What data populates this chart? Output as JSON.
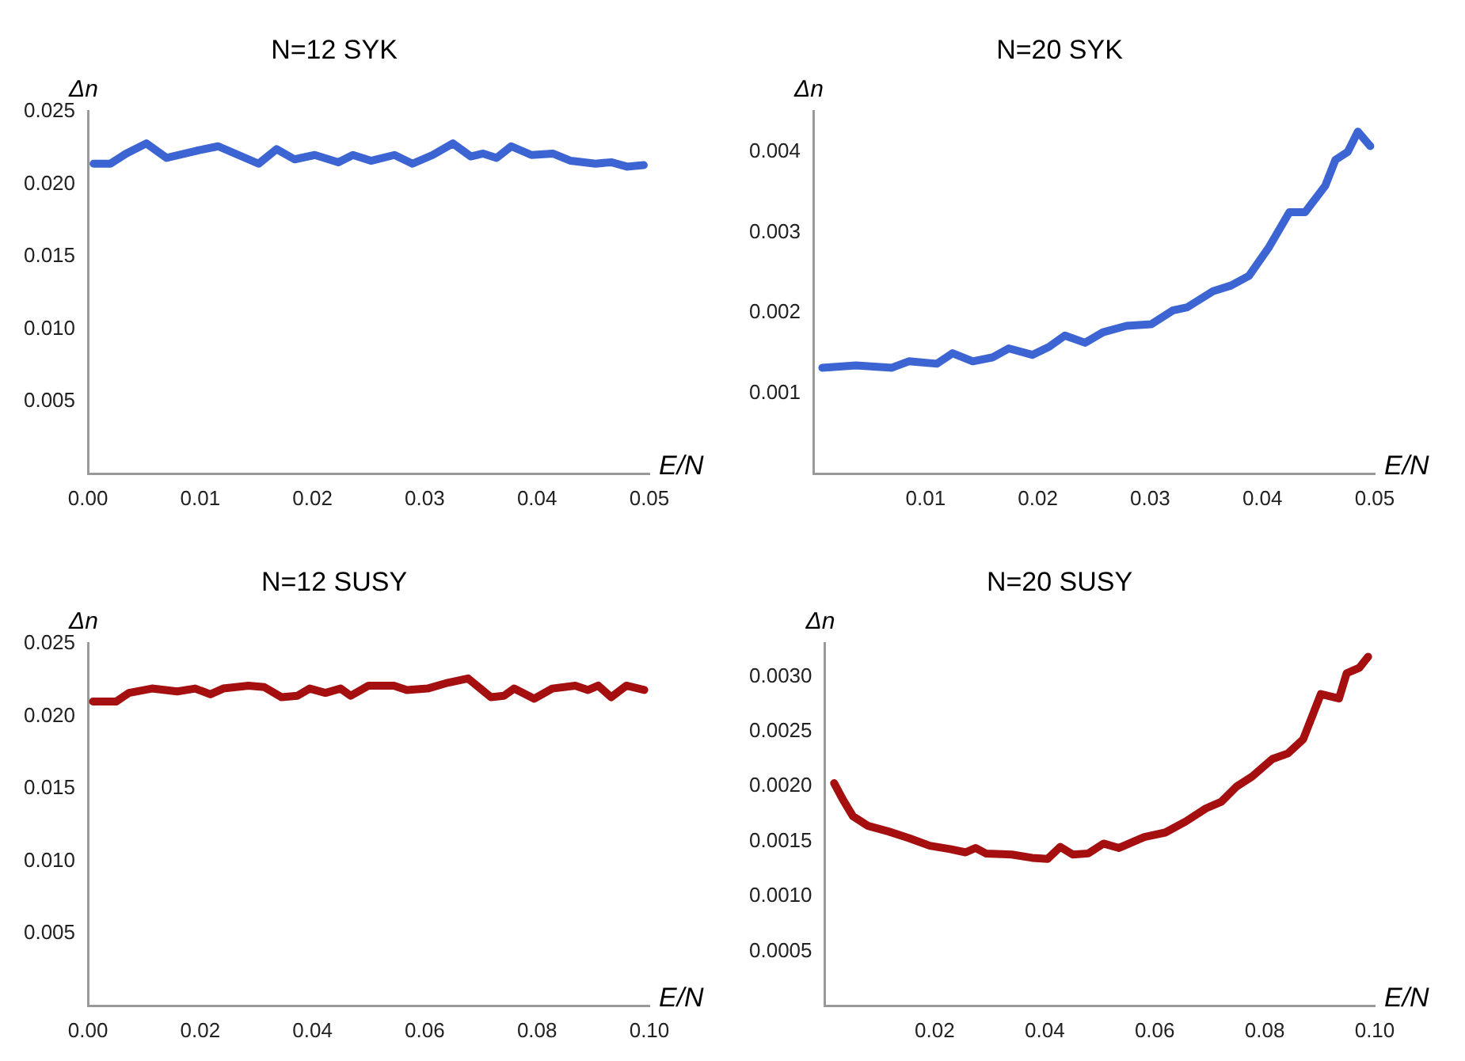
{
  "chart_data": [
    {
      "type": "line",
      "title": "N=12 SYK",
      "xlabel": "E/N",
      "ylabel": "Δn",
      "xlim": [
        0,
        0.05
      ],
      "ylim": [
        0,
        0.025
      ],
      "grid": false,
      "legend": false,
      "marker": "none",
      "line_style": "solid",
      "xticks": [
        {
          "value": 0,
          "label": "0.00"
        },
        {
          "value": 0.01,
          "label": "0.01"
        },
        {
          "value": 0.02,
          "label": "0.02"
        },
        {
          "value": 0.03,
          "label": "0.03"
        },
        {
          "value": 0.04,
          "label": "0.04"
        },
        {
          "value": 0.05,
          "label": "0.05"
        }
      ],
      "yticks": [
        {
          "value": 0.005,
          "label": "0.005"
        },
        {
          "value": 0.01,
          "label": "0.010"
        },
        {
          "value": 0.015,
          "label": "0.015"
        },
        {
          "value": 0.02,
          "label": "0.020"
        },
        {
          "value": 0.025,
          "label": "0.025"
        }
      ],
      "x": [
        0.0005,
        0.002,
        0.0034,
        0.0052,
        0.007,
        0.0097,
        0.0116,
        0.0134,
        0.0152,
        0.0168,
        0.0184,
        0.0202,
        0.0223,
        0.0236,
        0.0252,
        0.0273,
        0.0289,
        0.0307,
        0.0325,
        0.0341,
        0.0352,
        0.0364,
        0.0377,
        0.0395,
        0.0414,
        0.043,
        0.0452,
        0.0466,
        0.048,
        0.0495
      ],
      "series": [
        {
          "color": "#3c64d2",
          "values": [
            0.0214,
            0.0214,
            0.0221,
            0.0228,
            0.0218,
            0.0223,
            0.0226,
            0.022,
            0.0214,
            0.0224,
            0.0217,
            0.022,
            0.0215,
            0.022,
            0.0216,
            0.022,
            0.0214,
            0.022,
            0.0228,
            0.0219,
            0.0221,
            0.0218,
            0.0226,
            0.022,
            0.0221,
            0.0216,
            0.0214,
            0.0215,
            0.0212,
            0.0213
          ]
        }
      ]
    },
    {
      "type": "line",
      "title": "N=20 SYK",
      "xlabel": "E/N",
      "ylabel": "Δn",
      "xlim": [
        0,
        0.05
      ],
      "ylim": [
        0,
        0.0045
      ],
      "grid": false,
      "legend": false,
      "marker": "none",
      "line_style": "solid",
      "xticks": [
        {
          "value": 0.01,
          "label": "0.01"
        },
        {
          "value": 0.02,
          "label": "0.02"
        },
        {
          "value": 0.03,
          "label": "0.03"
        },
        {
          "value": 0.04,
          "label": "0.04"
        },
        {
          "value": 0.05,
          "label": "0.05"
        }
      ],
      "yticks": [
        {
          "value": 0.001,
          "label": "0.001"
        },
        {
          "value": 0.002,
          "label": "0.002"
        },
        {
          "value": 0.003,
          "label": "0.003"
        },
        {
          "value": 0.004,
          "label": "0.004"
        }
      ],
      "x": [
        0.0008,
        0.0038,
        0.007,
        0.0085,
        0.011,
        0.0124,
        0.0142,
        0.016,
        0.0174,
        0.0195,
        0.021,
        0.0224,
        0.0242,
        0.0258,
        0.0279,
        0.0301,
        0.032,
        0.0333,
        0.0356,
        0.0372,
        0.0388,
        0.0406,
        0.0424,
        0.0438,
        0.0456,
        0.0465,
        0.0476,
        0.0485,
        0.0496
      ],
      "series": [
        {
          "color": "#3c64d2",
          "values": [
            0.00132,
            0.00135,
            0.00132,
            0.0014,
            0.00137,
            0.0015,
            0.0014,
            0.00145,
            0.00156,
            0.00148,
            0.00158,
            0.00172,
            0.00163,
            0.00176,
            0.00184,
            0.00186,
            0.00203,
            0.00207,
            0.00227,
            0.00234,
            0.00246,
            0.00282,
            0.00325,
            0.00325,
            0.00358,
            0.0039,
            0.004,
            0.00425,
            0.00407
          ]
        }
      ]
    },
    {
      "type": "line",
      "title": "N=12 SUSY",
      "xlabel": "E/N",
      "ylabel": "Δn",
      "xlim": [
        0,
        0.1
      ],
      "ylim": [
        0,
        0.025
      ],
      "grid": false,
      "legend": false,
      "marker": "none",
      "line_style": "solid",
      "xticks": [
        {
          "value": 0,
          "label": "0.00"
        },
        {
          "value": 0.02,
          "label": "0.02"
        },
        {
          "value": 0.04,
          "label": "0.04"
        },
        {
          "value": 0.06,
          "label": "0.06"
        },
        {
          "value": 0.08,
          "label": "0.08"
        },
        {
          "value": 0.1,
          "label": "0.10"
        }
      ],
      "yticks": [
        {
          "value": 0.005,
          "label": "0.005"
        },
        {
          "value": 0.01,
          "label": "0.010"
        },
        {
          "value": 0.015,
          "label": "0.015"
        },
        {
          "value": 0.02,
          "label": "0.020"
        },
        {
          "value": 0.025,
          "label": "0.025"
        }
      ],
      "x": [
        0.0009,
        0.005,
        0.0073,
        0.0114,
        0.0159,
        0.0191,
        0.0218,
        0.0241,
        0.0286,
        0.0314,
        0.0345,
        0.0373,
        0.0395,
        0.0423,
        0.045,
        0.0468,
        0.05,
        0.0545,
        0.0568,
        0.0605,
        0.0641,
        0.0677,
        0.0718,
        0.0741,
        0.0759,
        0.0795,
        0.0827,
        0.0868,
        0.0891,
        0.0909,
        0.0932,
        0.0959,
        0.0991
      ],
      "series": [
        {
          "color": "#a50f0f",
          "values": [
            0.021,
            0.021,
            0.0216,
            0.0219,
            0.0217,
            0.0219,
            0.0215,
            0.0219,
            0.0221,
            0.022,
            0.0213,
            0.0214,
            0.0219,
            0.0216,
            0.0219,
            0.0214,
            0.0221,
            0.0221,
            0.0218,
            0.0219,
            0.0223,
            0.0226,
            0.0213,
            0.0214,
            0.0219,
            0.0212,
            0.0219,
            0.0221,
            0.0218,
            0.0221,
            0.0213,
            0.0221,
            0.0218
          ]
        }
      ]
    },
    {
      "type": "line",
      "title": "N=20 SUSY",
      "xlabel": "E/N",
      "ylabel": "Δn",
      "xlim": [
        0,
        0.1
      ],
      "ylim": [
        0,
        0.0033
      ],
      "grid": false,
      "legend": false,
      "marker": "none",
      "line_style": "solid",
      "xticks": [
        {
          "value": 0.02,
          "label": "0.02"
        },
        {
          "value": 0.04,
          "label": "0.04"
        },
        {
          "value": 0.06,
          "label": "0.06"
        },
        {
          "value": 0.08,
          "label": "0.08"
        },
        {
          "value": 0.1,
          "label": "0.10"
        }
      ],
      "yticks": [
        {
          "value": 0.0005,
          "label": "0.0005"
        },
        {
          "value": 0.001,
          "label": "0.0010"
        },
        {
          "value": 0.0015,
          "label": "0.0015"
        },
        {
          "value": 0.002,
          "label": "0.0020"
        },
        {
          "value": 0.0025,
          "label": "0.0025"
        },
        {
          "value": 0.003,
          "label": "0.0030"
        }
      ],
      "x": [
        0.0017,
        0.0033,
        0.0051,
        0.0079,
        0.0116,
        0.0153,
        0.0191,
        0.0228,
        0.0256,
        0.0274,
        0.0293,
        0.034,
        0.0377,
        0.0405,
        0.0428,
        0.0451,
        0.0479,
        0.0507,
        0.0535,
        0.0581,
        0.0619,
        0.0656,
        0.0693,
        0.0721,
        0.0749,
        0.0777,
        0.0814,
        0.0842,
        0.087,
        0.0902,
        0.0935,
        0.0949,
        0.0972,
        0.0988
      ],
      "series": [
        {
          "color": "#a50f0f",
          "values": [
            0.00203,
            0.00188,
            0.00173,
            0.00164,
            0.00159,
            0.00153,
            0.00146,
            0.00143,
            0.0014,
            0.00144,
            0.00139,
            0.00138,
            0.00135,
            0.00134,
            0.00145,
            0.00138,
            0.00139,
            0.00148,
            0.00144,
            0.00154,
            0.00158,
            0.00168,
            0.0018,
            0.00186,
            0.002,
            0.00209,
            0.00225,
            0.0023,
            0.00243,
            0.00284,
            0.0028,
            0.00303,
            0.00308,
            0.00318
          ]
        }
      ]
    }
  ]
}
